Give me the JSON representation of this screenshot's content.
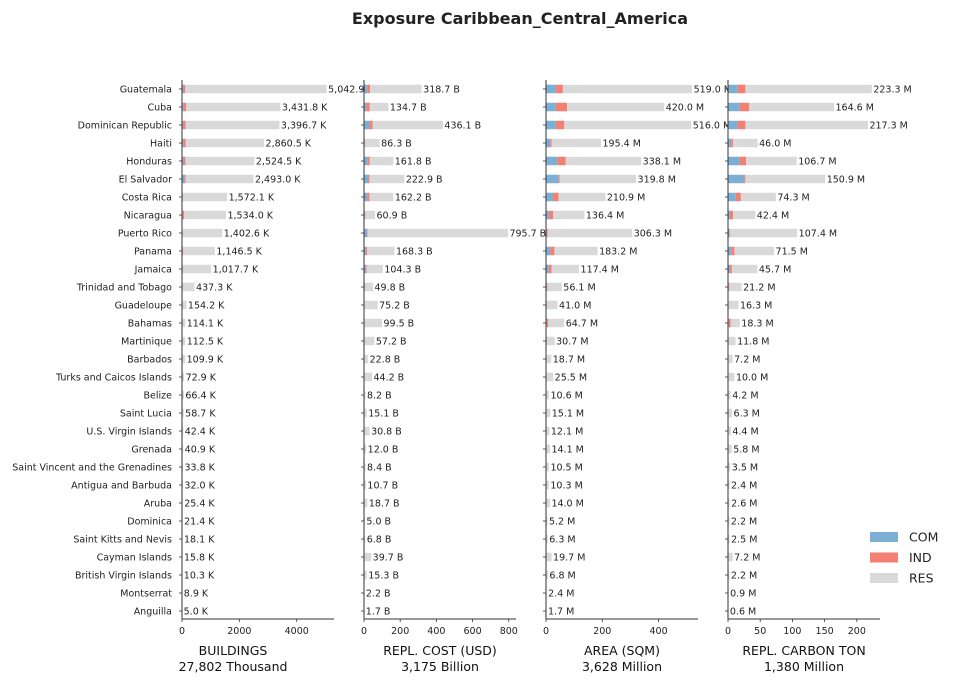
{
  "chart_data": {
    "type": "bar",
    "orientation": "horizontal-stacked",
    "title": "Exposure Caribbean_Central_America",
    "categories": [
      "Guatemala",
      "Cuba",
      "Dominican Republic",
      "Haiti",
      "Honduras",
      "El Salvador",
      "Costa Rica",
      "Nicaragua",
      "Puerto Rico",
      "Panama",
      "Jamaica",
      "Trinidad and Tobago",
      "Guadeloupe",
      "Bahamas",
      "Martinique",
      "Barbados",
      "Turks and Caicos Islands",
      "Belize",
      "Saint Lucia",
      "U.S. Virgin Islands",
      "Grenada",
      "Saint Vincent and the Grenadines",
      "Antigua and Barbuda",
      "Aruba",
      "Dominica",
      "Saint Kitts and Nevis",
      "Cayman Islands",
      "British Virgin Islands",
      "Montserrat",
      "Anguilla"
    ],
    "legend": {
      "placement": "bottom-right",
      "entries": [
        {
          "name": "COM",
          "color": "#7bafd4"
        },
        {
          "name": "IND",
          "color": "#f47f73"
        },
        {
          "name": "RES",
          "color": "#d9d9d9"
        }
      ]
    },
    "panels": [
      {
        "xlabel": "BUILDINGS",
        "total_label": "27,802 Thousand",
        "xlim": [
          0,
          5300
        ],
        "xticks": [
          0,
          2000,
          4000
        ],
        "com": [
          55,
          60,
          40,
          45,
          55,
          85,
          15,
          25,
          10,
          20,
          20,
          6,
          3,
          4,
          3,
          2,
          1,
          1,
          1,
          1,
          1,
          1,
          1,
          1,
          1,
          1,
          1,
          0,
          0,
          0
        ],
        "ind": [
          60,
          90,
          85,
          85,
          65,
          40,
          15,
          45,
          10,
          20,
          10,
          5,
          3,
          2,
          2,
          2,
          1,
          1,
          1,
          1,
          1,
          1,
          1,
          1,
          1,
          1,
          1,
          0,
          0,
          0
        ],
        "res": [
          4927.9,
          3281.8,
          3271.7,
          2730.5,
          2404.5,
          2368.0,
          1542.1,
          1464.0,
          1382.6,
          1106.5,
          987.7,
          426.3,
          148.2,
          108.1,
          107.5,
          105.9,
          70.9,
          64.4,
          56.7,
          40.4,
          38.9,
          31.8,
          30.0,
          23.4,
          19.4,
          16.1,
          13.8,
          10.3,
          8.9,
          5.0
        ],
        "labels": [
          "5,042.9 K",
          "3,431.8 K",
          "3,396.7 K",
          "2,860.5 K",
          "2,524.5 K",
          "2,493.0 K",
          "1,572.1 K",
          "1,534.0 K",
          "1,402.6 K",
          "1,146.5 K",
          "1,017.7 K",
          "437.3 K",
          "154.2 K",
          "114.1 K",
          "112.5 K",
          "109.9 K",
          "72.9 K",
          "66.4 K",
          "58.7 K",
          "42.4 K",
          "40.9 K",
          "33.8 K",
          "32.0 K",
          "25.4 K",
          "21.4 K",
          "18.1 K",
          "15.8 K",
          "10.3 K",
          "8.9 K",
          "5.0 K"
        ]
      },
      {
        "xlabel": "REPL. COST (USD)",
        "total_label": "3,175 Billion",
        "xlim": [
          0,
          840
        ],
        "xticks": [
          0,
          200,
          400,
          600,
          800
        ],
        "com": [
          18,
          12,
          30,
          3,
          20,
          22,
          18,
          3,
          18,
          10,
          10,
          3,
          2,
          2,
          2,
          1,
          1,
          0,
          1,
          1,
          1,
          0,
          0,
          1,
          0,
          0,
          1,
          1,
          0,
          0
        ],
        "ind": [
          15,
          20,
          18,
          2,
          12,
          8,
          12,
          3,
          3,
          8,
          5,
          2,
          1,
          2,
          1,
          1,
          1,
          0,
          0,
          1,
          0,
          0,
          0,
          0,
          0,
          0,
          1,
          0,
          0,
          0
        ],
        "res": [
          285.7,
          102.7,
          388.1,
          81.3,
          129.8,
          192.9,
          132.2,
          54.9,
          774.7,
          150.3,
          89.3,
          44.8,
          72.2,
          95.5,
          54.2,
          20.8,
          42.2,
          8.2,
          14.1,
          28.8,
          11.0,
          8.4,
          10.7,
          17.7,
          5.0,
          6.8,
          37.7,
          14.3,
          2.2,
          1.7
        ],
        "labels": [
          "318.7 B",
          "134.7 B",
          "436.1 B",
          "86.3 B",
          "161.8 B",
          "222.9 B",
          "162.2 B",
          "60.9 B",
          "795.7 B",
          "168.3 B",
          "104.3 B",
          "49.8 B",
          "75.2 B",
          "99.5 B",
          "57.2 B",
          "22.8 B",
          "44.2 B",
          "8.2 B",
          "15.1 B",
          "30.8 B",
          "12.0 B",
          "8.4 B",
          "10.7 B",
          "18.7 B",
          "5.0 B",
          "6.8 B",
          "39.7 B",
          "15.3 B",
          "2.2 B",
          "1.7 B"
        ]
      },
      {
        "xlabel": "AREA (SQM)",
        "total_label": "3,628 Million",
        "xlim": [
          0,
          540
        ],
        "xticks": [
          0,
          200,
          400
        ],
        "com": [
          35,
          35,
          35,
          15,
          40,
          45,
          25,
          10,
          3,
          15,
          10,
          3,
          2,
          3,
          2,
          1,
          1,
          1,
          1,
          1,
          1,
          1,
          1,
          1,
          0,
          0,
          1,
          0,
          0,
          0
        ],
        "ind": [
          25,
          40,
          30,
          5,
          30,
          3,
          20,
          15,
          3,
          15,
          10,
          2,
          1,
          5,
          1,
          1,
          1,
          0,
          0,
          0,
          0,
          0,
          0,
          0,
          0,
          0,
          0,
          0,
          0,
          0
        ],
        "res": [
          459.0,
          345.0,
          451.0,
          175.4,
          268.1,
          271.9,
          165.9,
          111.4,
          300.3,
          153.2,
          97.4,
          51.1,
          38.0,
          56.7,
          27.7,
          16.7,
          23.5,
          9.6,
          14.1,
          11.1,
          13.1,
          9.5,
          9.3,
          13.0,
          5.2,
          6.3,
          18.7,
          6.8,
          2.4,
          1.7
        ],
        "labels": [
          "519.0 M",
          "420.0 M",
          "516.0 M",
          "195.4 M",
          "338.1 M",
          "319.8 M",
          "210.9 M",
          "136.4 M",
          "306.3 M",
          "183.2 M",
          "117.4 M",
          "56.1 M",
          "41.0 M",
          "64.7 M",
          "30.7 M",
          "18.7 M",
          "25.5 M",
          "10.6 M",
          "15.1 M",
          "12.1 M",
          "14.1 M",
          "10.5 M",
          "10.3 M",
          "14.0 M",
          "5.2 M",
          "6.3 M",
          "19.7 M",
          "6.8 M",
          "2.4 M",
          "1.7 M"
        ]
      },
      {
        "xlabel": "REPL. CARBON TON",
        "total_label": "1,380 Million",
        "xlim": [
          0,
          236
        ],
        "xticks": [
          0,
          50,
          100,
          150,
          200
        ],
        "com": [
          15,
          18,
          15,
          5,
          18,
          25,
          12,
          3,
          2,
          5,
          3,
          1,
          1,
          1,
          1,
          1,
          1,
          0,
          0,
          0,
          0,
          0,
          0,
          0,
          0,
          0,
          1,
          0,
          0,
          0
        ],
        "ind": [
          12,
          15,
          12,
          3,
          10,
          2,
          8,
          5,
          1,
          5,
          3,
          1,
          0,
          3,
          0,
          0,
          0,
          0,
          0,
          0,
          0,
          0,
          0,
          0,
          0,
          0,
          0,
          0,
          0,
          0
        ],
        "res": [
          196.3,
          131.6,
          190.3,
          38.0,
          78.7,
          123.9,
          54.3,
          34.4,
          104.4,
          61.5,
          39.7,
          19.2,
          15.3,
          14.3,
          10.8,
          6.2,
          9.0,
          4.2,
          6.3,
          4.4,
          5.8,
          3.5,
          2.4,
          2.6,
          2.2,
          2.5,
          6.2,
          2.2,
          0.9,
          0.6
        ],
        "labels": [
          "223.3 M",
          "164.6 M",
          "217.3 M",
          "46.0 M",
          "106.7 M",
          "150.9 M",
          "74.3 M",
          "42.4 M",
          "107.4 M",
          "71.5 M",
          "45.7 M",
          "21.2 M",
          "16.3 M",
          "18.3 M",
          "11.8 M",
          "7.2 M",
          "10.0 M",
          "4.2 M",
          "6.3 M",
          "4.4 M",
          "5.8 M",
          "3.5 M",
          "2.4 M",
          "2.6 M",
          "2.2 M",
          "2.5 M",
          "7.2 M",
          "2.2 M",
          "0.9 M",
          "0.6 M"
        ]
      }
    ]
  }
}
